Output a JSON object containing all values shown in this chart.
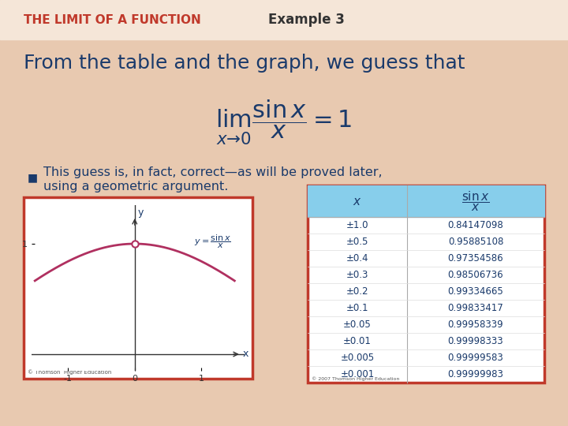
{
  "title_left": "THE LIMIT OF A FUNCTION",
  "title_right": "Example 3",
  "heading": "From the table and the graph, we guess that",
  "limit_formula": "\\lim_{x \\to 0} \\dfrac{\\sin x}{x} = 1",
  "bullet_line1": "This guess is, in fact, correct—as will be proved later,",
  "bullet_line2": "using a geometric argument.",
  "bg_color": "#e8c9b0",
  "slide_bg": "#e8c9b0",
  "title_color": "#c0392b",
  "example_color": "#333333",
  "heading_color": "#1a3a6b",
  "formula_color": "#1a3a6b",
  "bullet_color": "#1a3a6b",
  "graph_border_color": "#c0392b",
  "table_border_color": "#c0392b",
  "table_header_color": "#87ceeb",
  "table_bg": "#ffffff",
  "graph_bg": "#ffffff",
  "table_x_values": [
    "±1.0",
    "±0.5",
    "±0.4",
    "±0.3",
    "±0.2",
    "±0.1",
    "±0.05",
    "±0.01",
    "±0.005",
    "±0.001"
  ],
  "table_y_values": [
    "0.84147098",
    "0.95885108",
    "0.97354586",
    "0.98506736",
    "0.99334665",
    "0.99833417",
    "0.99958339",
    "0.99998333",
    "0.99999583",
    "0.99999983"
  ],
  "curve_color": "#b03060",
  "graph_label_color": "#1a3a6b",
  "axis_color": "#333333",
  "open_circle_color": "#b03060"
}
